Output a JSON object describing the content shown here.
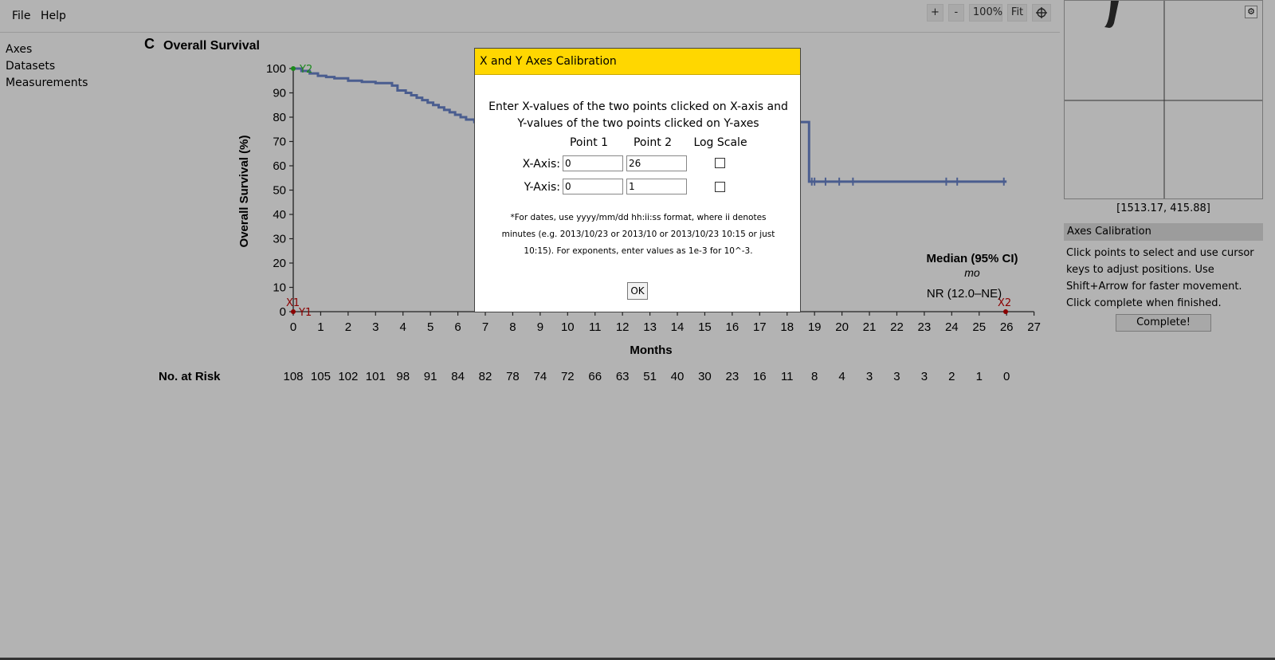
{
  "menubar": {
    "items": [
      "File",
      "Help"
    ]
  },
  "zoom": {
    "plus": "+",
    "minus": "-",
    "level": "100%",
    "fit": "Fit",
    "crosshair_icon": "crosshair-icon"
  },
  "sidebar": {
    "items": [
      "Axes",
      "Datasets",
      "Measurements"
    ]
  },
  "figure": {
    "panel_letter": "C",
    "title": "Overall Survival",
    "xlabel": "Months",
    "ylabel": "Overall Survival (%)",
    "risk_label": "No. at Risk",
    "median_header": "Median (95% CI)",
    "median_unit": "mo",
    "median_value": "NR (12.0–NE)",
    "markers": {
      "x1": "X1",
      "x2": "X2",
      "y1": "Y1",
      "y2": "Y2"
    }
  },
  "chart_data": {
    "type": "line",
    "title": "Overall Survival",
    "xlabel": "Months",
    "ylabel": "Overall Survival (%)",
    "xlim": [
      0,
      27
    ],
    "ylim": [
      0,
      100
    ],
    "x_ticks": [
      0,
      1,
      2,
      3,
      4,
      5,
      6,
      7,
      8,
      9,
      10,
      11,
      12,
      13,
      14,
      15,
      16,
      17,
      18,
      19,
      20,
      21,
      22,
      23,
      24,
      25,
      26,
      27
    ],
    "y_ticks": [
      0,
      10,
      20,
      30,
      40,
      50,
      60,
      70,
      80,
      90,
      100
    ],
    "series": [
      {
        "color": "#4a5d8f",
        "x": [
          0,
          0.3,
          0.6,
          0.9,
          1.2,
          1.5,
          2.0,
          2.5,
          3.0,
          3.6,
          3.8,
          4.1,
          4.3,
          4.5,
          4.7,
          4.9,
          5.1,
          5.3,
          5.5,
          5.7,
          5.9,
          6.1,
          6.3,
          6.6,
          18.8,
          26
        ],
        "y": [
          100,
          99,
          98,
          97,
          96.5,
          96,
          95,
          94.5,
          94,
          93,
          91,
          90,
          89,
          88,
          87,
          86,
          85,
          84,
          83,
          82,
          81,
          80,
          79,
          78,
          53.5,
          53.5
        ],
        "censor_marks_x": [
          18.9,
          19.0,
          19.4,
          19.9,
          20.4,
          23.8,
          24.2,
          25.9
        ]
      }
    ],
    "risk_table": {
      "label": "No. at Risk",
      "values": [
        108,
        105,
        102,
        101,
        98,
        91,
        84,
        82,
        78,
        74,
        72,
        66,
        63,
        51,
        40,
        30,
        23,
        16,
        11,
        8,
        4,
        3,
        3,
        3,
        2,
        1,
        0
      ]
    },
    "grid": false,
    "legend": "none"
  },
  "magnifier": {
    "coords": "[1513.17, 415.88]",
    "settings_icon": "gear-icon"
  },
  "panel": {
    "title": "Axes Calibration",
    "lines": [
      "Click points to select and use cursor",
      "keys to adjust positions. Use",
      "Shift+Arrow for faster movement.",
      "Click complete when finished."
    ],
    "complete_label": "Complete!"
  },
  "dialog": {
    "title": "X and Y Axes Calibration",
    "instructions": [
      "Enter X-values of the two points clicked on X-axis and",
      "Y-values of the two points clicked on Y-axes"
    ],
    "col_point1": "Point 1",
    "col_point2": "Point 2",
    "col_log": "Log Scale",
    "x_label": "X-Axis:",
    "y_label": "Y-Axis:",
    "x1_value": "0",
    "x2_value": "26",
    "y1_value": "0",
    "y2_value": "1",
    "x_log": false,
    "y_log": false,
    "note_lines": [
      "*For dates, use yyyy/mm/dd hh:ii:ss format, where ii denotes",
      "minutes (e.g. 2013/10/23 or 2013/10 or 2013/10/23 10:15 or just",
      "10:15). For exponents, enter values as 1e-3 for 10^-3."
    ],
    "ok_label": "OK"
  }
}
